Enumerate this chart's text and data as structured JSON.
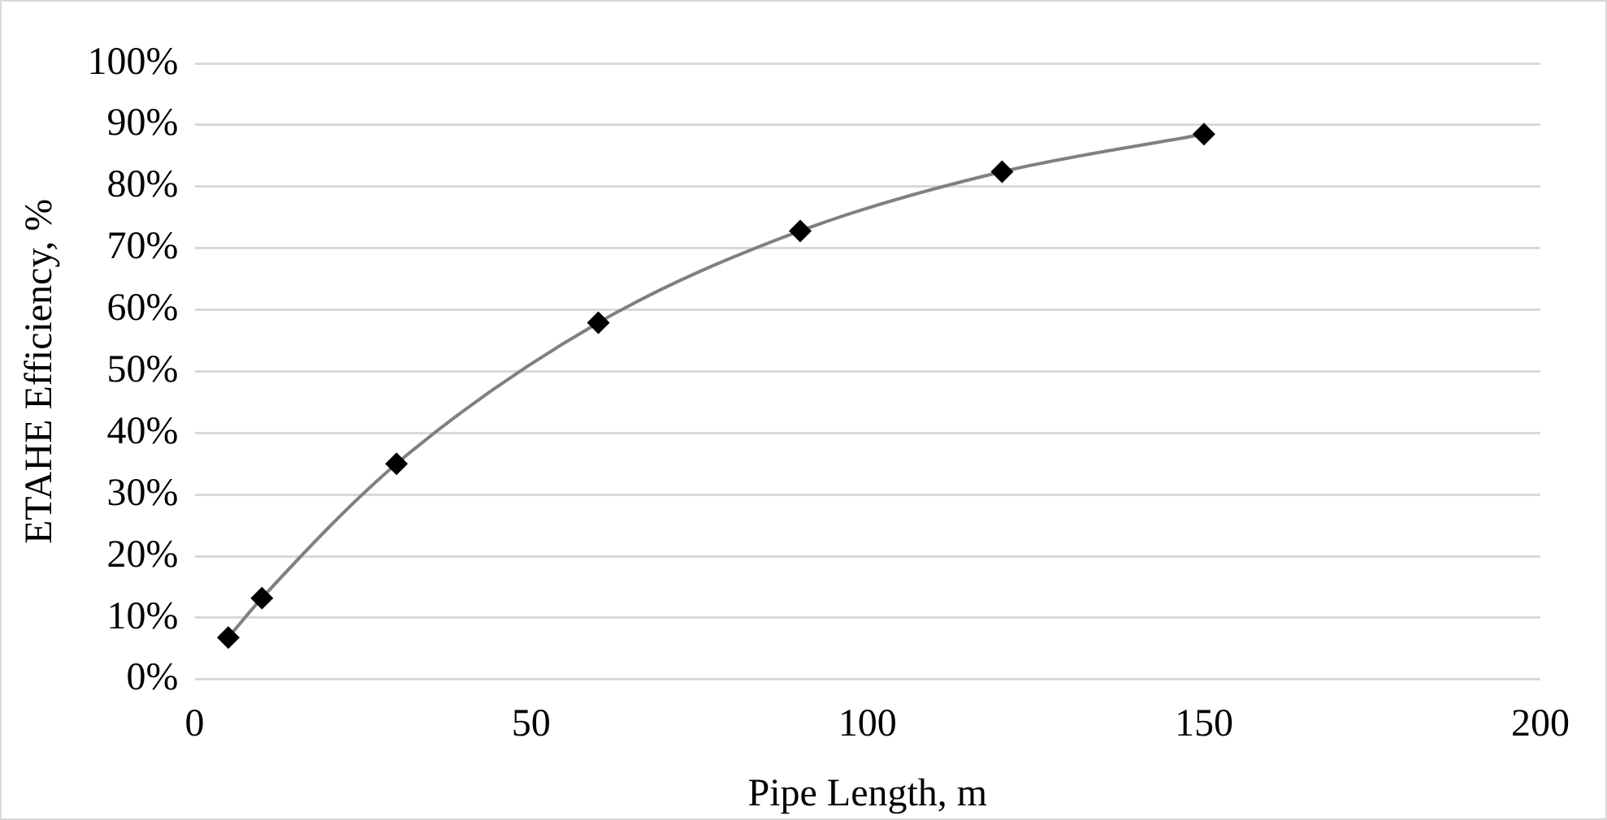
{
  "chart_data": {
    "type": "line",
    "xlabel": "Pipe Length, m",
    "ylabel": "ETAHE Efficiency, %",
    "x": [
      5,
      10,
      30,
      60,
      90,
      120,
      150
    ],
    "series": [
      {
        "color": "#808080",
        "values": [
          6.8,
          13.2,
          35.0,
          57.9,
          72.8,
          82.4,
          88.5
        ]
      }
    ],
    "xlim": [
      0,
      200
    ],
    "xticks": [
      0,
      50,
      100,
      150,
      200
    ],
    "ylim": [
      0,
      100
    ],
    "yticks": [
      {
        "value": 0,
        "label": "0%"
      },
      {
        "value": 10,
        "label": "10%"
      },
      {
        "value": 20,
        "label": "20%"
      },
      {
        "value": 30,
        "label": "30%"
      },
      {
        "value": 40,
        "label": "40%"
      },
      {
        "value": 50,
        "label": "50%"
      },
      {
        "value": 60,
        "label": "60%"
      },
      {
        "value": 70,
        "label": "70%"
      },
      {
        "value": 80,
        "label": "80%"
      },
      {
        "value": 90,
        "label": "90%"
      },
      {
        "value": 100,
        "label": "100%"
      }
    ],
    "grid": "y",
    "marker": "diamond",
    "line_style": "solid",
    "legend": false
  }
}
